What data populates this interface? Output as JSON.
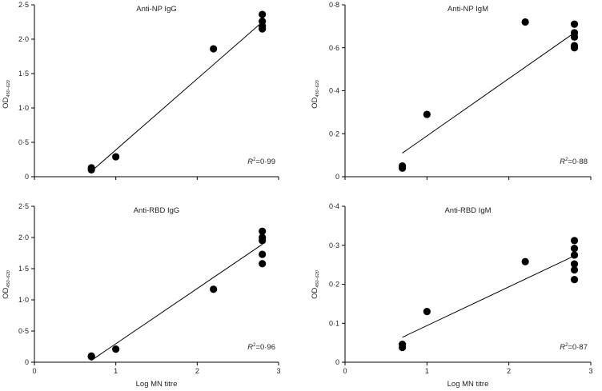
{
  "chart_data": [
    {
      "id": "anti-np-igg",
      "type": "scatter",
      "title": "Anti-NP IgG",
      "xlabel": "",
      "ylabel_main": "OD",
      "ylabel_sub": "450–620",
      "xlim": [
        0,
        3
      ],
      "ylim": [
        0,
        2.5
      ],
      "xticks": [
        0,
        1,
        2,
        3
      ],
      "xtick_labels": [
        "",
        "",
        "",
        ""
      ],
      "yticks": [
        0,
        0.5,
        1.0,
        1.5,
        2.0,
        2.5
      ],
      "ytick_labels": [
        "0",
        "0·5",
        "1·0",
        "1·5",
        "2·0",
        "2·5"
      ],
      "points": [
        [
          0.7,
          0.1
        ],
        [
          0.7,
          0.13
        ],
        [
          1.0,
          0.29
        ],
        [
          2.2,
          1.86
        ],
        [
          2.8,
          2.15
        ],
        [
          2.8,
          2.19
        ],
        [
          2.8,
          2.26
        ],
        [
          2.8,
          2.36
        ]
      ],
      "fit": [
        [
          0.7,
          0.08
        ],
        [
          2.8,
          2.25
        ]
      ],
      "r2_label": "R",
      "r2_value": "=0·99"
    },
    {
      "id": "anti-np-igm",
      "type": "scatter",
      "title": "Anti-NP IgM",
      "xlabel": "",
      "ylabel_main": "OD",
      "ylabel_sub": "450–620",
      "xlim": [
        0,
        3
      ],
      "ylim": [
        0,
        0.8
      ],
      "xticks": [
        0,
        1,
        2,
        3
      ],
      "xtick_labels": [
        "",
        "",
        "",
        ""
      ],
      "yticks": [
        0,
        0.2,
        0.4,
        0.6,
        0.8
      ],
      "ytick_labels": [
        "0",
        "0·2",
        "0·4",
        "0·6",
        "0·8"
      ],
      "points": [
        [
          0.7,
          0.04
        ],
        [
          0.7,
          0.05
        ],
        [
          1.0,
          0.29
        ],
        [
          2.2,
          0.72
        ],
        [
          2.8,
          0.6
        ],
        [
          2.8,
          0.61
        ],
        [
          2.8,
          0.65
        ],
        [
          2.8,
          0.67
        ],
        [
          2.8,
          0.71
        ]
      ],
      "fit": [
        [
          0.7,
          0.11
        ],
        [
          2.8,
          0.67
        ]
      ],
      "r2_label": "R",
      "r2_value": "=0·88"
    },
    {
      "id": "anti-rbd-igg",
      "type": "scatter",
      "title": "Anti-RBD IgG",
      "xlabel": "Log MN titre",
      "ylabel_main": "OD",
      "ylabel_sub": "450–620",
      "xlim": [
        0,
        3
      ],
      "ylim": [
        0,
        2.5
      ],
      "xticks": [
        0,
        1,
        2,
        3
      ],
      "xtick_labels": [
        "0",
        "1",
        "2",
        "3"
      ],
      "yticks": [
        0,
        0.5,
        1.0,
        1.5,
        2.0,
        2.5
      ],
      "ytick_labels": [
        "0",
        "0·5",
        "1·0",
        "1·5",
        "2·0",
        "2·5"
      ],
      "points": [
        [
          0.7,
          0.09
        ],
        [
          0.7,
          0.1
        ],
        [
          1.0,
          0.21
        ],
        [
          2.2,
          1.17
        ],
        [
          2.8,
          1.58
        ],
        [
          2.8,
          1.73
        ],
        [
          2.8,
          1.95
        ],
        [
          2.8,
          2.0
        ],
        [
          2.8,
          2.1
        ]
      ],
      "fit": [
        [
          0.7,
          0.03
        ],
        [
          2.8,
          1.89
        ]
      ],
      "r2_label": "R",
      "r2_value": "=0·96"
    },
    {
      "id": "anti-rbd-igm",
      "type": "scatter",
      "title": "Anti-RBD IgM",
      "xlabel": "Log MN titre",
      "ylabel_main": "OD",
      "ylabel_sub": "450–620",
      "xlim": [
        0,
        3
      ],
      "ylim": [
        0,
        0.4
      ],
      "xticks": [
        0,
        1,
        2,
        3
      ],
      "xtick_labels": [
        "0",
        "1",
        "2",
        "3"
      ],
      "yticks": [
        0,
        0.1,
        0.2,
        0.3,
        0.4
      ],
      "ytick_labels": [
        "0",
        "0·1",
        "0·2",
        "0·3",
        "0·4"
      ],
      "points": [
        [
          0.7,
          0.038
        ],
        [
          0.7,
          0.046
        ],
        [
          1.0,
          0.13
        ],
        [
          2.2,
          0.258
        ],
        [
          2.8,
          0.212
        ],
        [
          2.8,
          0.237
        ],
        [
          2.8,
          0.252
        ],
        [
          2.8,
          0.275
        ],
        [
          2.8,
          0.292
        ],
        [
          2.8,
          0.312
        ]
      ],
      "fit": [
        [
          0.7,
          0.064
        ],
        [
          2.8,
          0.273
        ]
      ],
      "r2_label": "R",
      "r2_value": "=0·87"
    }
  ]
}
